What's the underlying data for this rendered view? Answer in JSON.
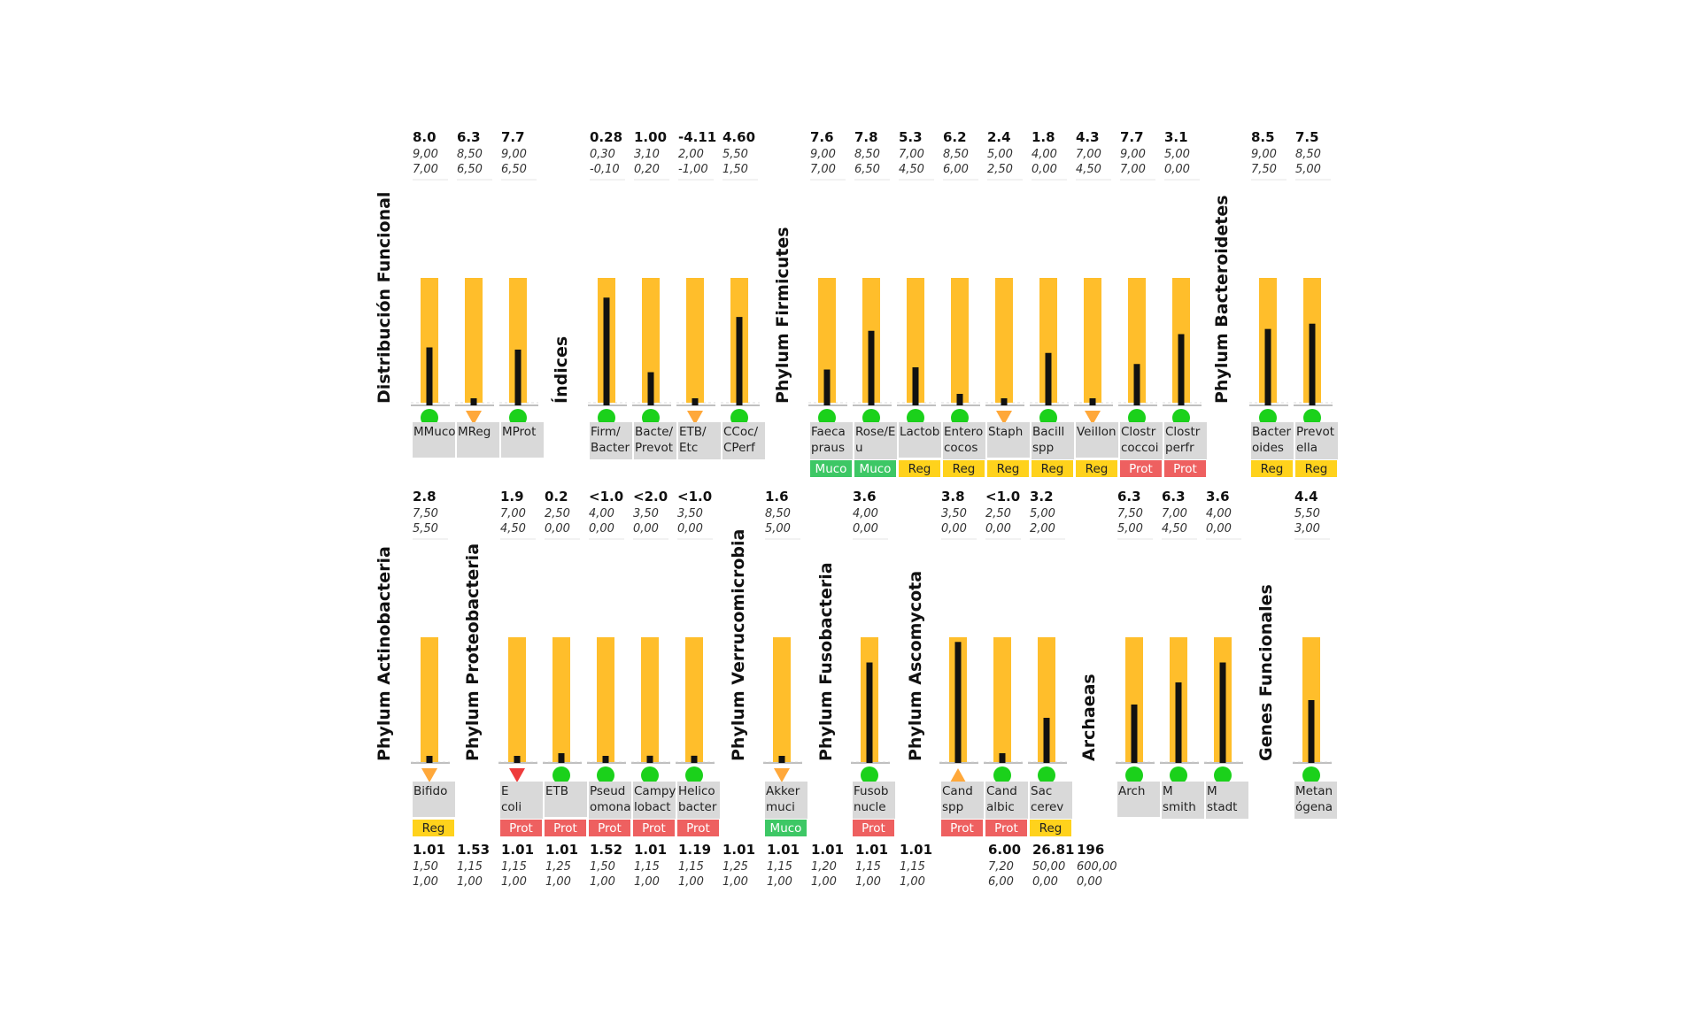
{
  "chart_data": {
    "type": "bar",
    "colors": {
      "range": "#ffbe2b",
      "bar": "#111111",
      "ok": "#1bd11b",
      "warn": "#ffa83a",
      "alert": "#ee3b3b",
      "tag_muco": "#3dc765",
      "tag_reg": "#ffd21c",
      "tag_prot": "#ee6060",
      "label_bg": "#d9d9d9"
    },
    "groups": [
      {
        "title": "Distribución Funcional",
        "row": 0,
        "items": [
          {
            "label": "MMuco",
            "value": "8.0",
            "hi": "9,00",
            "lo": "7,00",
            "v": 8.0,
            "min": 7.0,
            "max": 9.0,
            "status": "ok",
            "icon": "green-dot-icon"
          },
          {
            "label": "MReg",
            "value": "6.3",
            "hi": "8,50",
            "lo": "6,50",
            "v": 6.3,
            "min": 6.5,
            "max": 8.5,
            "status": "warn",
            "icon": "warning-down-icon"
          },
          {
            "label": "MProt",
            "value": "7.7",
            "hi": "9,00",
            "lo": "6,50",
            "v": 7.7,
            "min": 6.5,
            "max": 9.0,
            "status": "ok",
            "icon": "green-dot-icon"
          }
        ]
      },
      {
        "title": "Índices",
        "row": 0,
        "items": [
          {
            "label": "Firm/ Bacter",
            "value": "0.28",
            "hi": "0,30",
            "lo": "-0,10",
            "v": 0.28,
            "min": -0.1,
            "max": 0.3,
            "status": "ok",
            "icon": "green-dot-icon"
          },
          {
            "label": "Bacte/ Prevot",
            "value": "1.00",
            "hi": "3,10",
            "lo": "0,20",
            "v": 1.0,
            "min": 0.2,
            "max": 3.1,
            "status": "ok",
            "icon": "green-dot-icon"
          },
          {
            "label": "ETB/ Etc",
            "value": "-4.11",
            "hi": "2,00",
            "lo": "-1,00",
            "v": -4.11,
            "min": -1.0,
            "max": 2.0,
            "status": "warn",
            "icon": "warning-down-icon"
          },
          {
            "label": "CCoc/ CPerf",
            "value": "4.60",
            "hi": "5,50",
            "lo": "1,50",
            "v": 4.6,
            "min": 1.5,
            "max": 5.5,
            "status": "ok",
            "icon": "green-dot-icon"
          }
        ]
      },
      {
        "title": "Phylum Firmicutes",
        "row": 0,
        "items": [
          {
            "label": "Faeca praus",
            "value": "7.6",
            "hi": "9,00",
            "lo": "7,00",
            "v": 7.6,
            "min": 7.0,
            "max": 9.0,
            "status": "ok",
            "icon": "green-dot-icon",
            "tag": "Muco"
          },
          {
            "label": "Rose/E u",
            "value": "7.8",
            "hi": "8,50",
            "lo": "6,50",
            "v": 7.8,
            "min": 6.5,
            "max": 8.5,
            "status": "ok",
            "icon": "green-dot-icon",
            "tag": "Muco"
          },
          {
            "label": "Lactob",
            "value": "5.3",
            "hi": "7,00",
            "lo": "4,50",
            "v": 5.3,
            "min": 4.5,
            "max": 7.0,
            "status": "ok",
            "icon": "green-dot-icon",
            "tag": "Reg"
          },
          {
            "label": "Entero cocos",
            "value": "6.2",
            "hi": "8,50",
            "lo": "6,00",
            "v": 6.2,
            "min": 6.0,
            "max": 8.5,
            "status": "ok",
            "icon": "green-dot-icon",
            "tag": "Reg"
          },
          {
            "label": "Staph",
            "value": "2.4",
            "hi": "5,00",
            "lo": "2,50",
            "v": 2.4,
            "min": 2.5,
            "max": 5.0,
            "status": "warn",
            "icon": "warning-down-icon",
            "tag": "Reg"
          },
          {
            "label": "Bacill spp",
            "value": "1.8",
            "hi": "4,00",
            "lo": "0,00",
            "v": 1.8,
            "min": 0.0,
            "max": 4.0,
            "status": "ok",
            "icon": "green-dot-icon",
            "tag": "Reg"
          },
          {
            "label": "Veillon",
            "value": "4.3",
            "hi": "7,00",
            "lo": "4,50",
            "v": 4.3,
            "min": 4.5,
            "max": 7.0,
            "status": "warn",
            "icon": "warning-down-icon",
            "tag": "Reg"
          },
          {
            "label": "Clostr coccoi",
            "value": "7.7",
            "hi": "9,00",
            "lo": "7,00",
            "v": 7.7,
            "min": 7.0,
            "max": 9.0,
            "status": "ok",
            "icon": "green-dot-icon",
            "tag": "Prot"
          },
          {
            "label": "Clostr perfr",
            "value": "3.1",
            "hi": "5,00",
            "lo": "0,00",
            "v": 3.1,
            "min": 0.0,
            "max": 5.0,
            "status": "ok",
            "icon": "green-dot-icon",
            "tag": "Prot"
          }
        ]
      },
      {
        "title": "Phylum Bacteroidetes",
        "row": 0,
        "items": [
          {
            "label": "Bacter oides",
            "value": "8.5",
            "hi": "9,00",
            "lo": "7,50",
            "v": 8.5,
            "min": 7.5,
            "max": 9.0,
            "status": "ok",
            "icon": "green-dot-icon",
            "tag": "Reg"
          },
          {
            "label": "Prevot ella",
            "value": "7.5",
            "hi": "8,50",
            "lo": "5,00",
            "v": 7.5,
            "min": 5.0,
            "max": 8.5,
            "status": "ok",
            "icon": "green-dot-icon",
            "tag": "Reg"
          }
        ]
      },
      {
        "title": "Phylum Actinobacteria",
        "row": 1,
        "items": [
          {
            "label": "Bifido",
            "value": "2.8",
            "hi": "7,50",
            "lo": "5,50",
            "v": 2.8,
            "min": 5.5,
            "max": 7.5,
            "status": "warn",
            "icon": "warning-down-icon",
            "tag": "Reg"
          }
        ]
      },
      {
        "title": "Phylum Proteobacteria",
        "row": 1,
        "items": [
          {
            "label": "E coli",
            "value": "1.9",
            "hi": "7,00",
            "lo": "4,50",
            "v": 1.9,
            "min": 4.5,
            "max": 7.0,
            "status": "alert",
            "icon": "alert-down-icon",
            "tag": "Prot"
          },
          {
            "label": "ETB",
            "value": "0.2",
            "hi": "2,50",
            "lo": "0,00",
            "v": 0.2,
            "min": 0.0,
            "max": 2.5,
            "status": "ok",
            "icon": "green-dot-icon",
            "tag": "Prot"
          },
          {
            "label": "Pseud omona",
            "value": "<1.0",
            "hi": "4,00",
            "lo": "0,00",
            "v": 0.2,
            "min": 0.0,
            "max": 4.0,
            "status": "ok",
            "icon": "green-dot-icon",
            "tag": "Prot"
          },
          {
            "label": "Campy lobact",
            "value": "<2.0",
            "hi": "3,50",
            "lo": "0,00",
            "v": 0.2,
            "min": 0.0,
            "max": 3.5,
            "status": "ok",
            "icon": "green-dot-icon",
            "tag": "Prot"
          },
          {
            "label": "Helico bacter",
            "value": "<1.0",
            "hi": "3,50",
            "lo": "0,00",
            "v": 0.2,
            "min": 0.0,
            "max": 3.5,
            "status": "ok",
            "icon": "green-dot-icon",
            "tag": "Prot"
          }
        ]
      },
      {
        "title": "Phylum Verrucomicrobia",
        "row": 1,
        "items": [
          {
            "label": "Akker muci",
            "value": "1.6",
            "hi": "8,50",
            "lo": "5,00",
            "v": 1.6,
            "min": 5.0,
            "max": 8.5,
            "status": "warn",
            "icon": "warning-down-icon",
            "tag": "Muco"
          }
        ]
      },
      {
        "title": "Phylum Fusobacteria",
        "row": 1,
        "items": [
          {
            "label": "Fusob nucle",
            "value": "3.6",
            "hi": "4,00",
            "lo": "0,00",
            "v": 3.6,
            "min": 0.0,
            "max": 4.0,
            "status": "ok",
            "icon": "green-dot-icon",
            "tag": "Prot"
          }
        ]
      },
      {
        "title": "Phylum Ascomycota",
        "row": 1,
        "items": [
          {
            "label": "Cand spp",
            "value": "3.8",
            "hi": "3,50",
            "lo": "0,00",
            "v": 3.8,
            "min": 0.0,
            "max": 3.5,
            "status": "warn",
            "icon": "warning-up-icon",
            "tag": "Prot"
          },
          {
            "label": "Cand albic",
            "value": "<1.0",
            "hi": "2,50",
            "lo": "0,00",
            "v": 0.2,
            "min": 0.0,
            "max": 2.5,
            "status": "ok",
            "icon": "green-dot-icon",
            "tag": "Prot"
          },
          {
            "label": "Sac cerev",
            "value": "3.2",
            "hi": "5,00",
            "lo": "2,00",
            "v": 3.2,
            "min": 2.0,
            "max": 5.0,
            "status": "ok",
            "icon": "green-dot-icon",
            "tag": "Reg"
          }
        ]
      },
      {
        "title": "Archaeas",
        "row": 1,
        "items": [
          {
            "label": "Arch",
            "value": "6.3",
            "hi": "7,50",
            "lo": "5,00",
            "v": 6.3,
            "min": 5.0,
            "max": 7.5,
            "status": "ok",
            "icon": "green-dot-icon"
          },
          {
            "label": "M smith",
            "value": "6.3",
            "hi": "7,00",
            "lo": "4,50",
            "v": 6.3,
            "min": 4.5,
            "max": 7.0,
            "status": "ok",
            "icon": "green-dot-icon"
          },
          {
            "label": "M stadt",
            "value": "3.6",
            "hi": "4,00",
            "lo": "0,00",
            "v": 3.6,
            "min": 0.0,
            "max": 4.0,
            "status": "ok",
            "icon": "green-dot-icon"
          }
        ]
      },
      {
        "title": "Genes Funcionales",
        "row": 1,
        "items": [
          {
            "label": "Metan ógena",
            "value": "4.4",
            "hi": "5,50",
            "lo": "3,00",
            "v": 4.4,
            "min": 3.0,
            "max": 5.5,
            "status": "ok",
            "icon": "green-dot-icon"
          }
        ]
      }
    ],
    "bottom_row": [
      {
        "value": "1.01",
        "hi": "1,50",
        "lo": "1,00"
      },
      {
        "value": "1.53",
        "hi": "1,15",
        "lo": "1,00"
      },
      {
        "value": "1.01",
        "hi": "1,15",
        "lo": "1,00"
      },
      {
        "value": "1.01",
        "hi": "1,25",
        "lo": "1,00"
      },
      {
        "value": "1.52",
        "hi": "1,50",
        "lo": "1,00"
      },
      {
        "value": "1.01",
        "hi": "1,15",
        "lo": "1,00"
      },
      {
        "value": "1.19",
        "hi": "1,15",
        "lo": "1,00"
      },
      {
        "value": "1.01",
        "hi": "1,25",
        "lo": "1,00"
      },
      {
        "value": "1.01",
        "hi": "1,15",
        "lo": "1,00"
      },
      {
        "value": "1.01",
        "hi": "1,20",
        "lo": "1,00"
      },
      {
        "value": "1.01",
        "hi": "1,15",
        "lo": "1,00"
      },
      {
        "value": "1.01",
        "hi": "1,15",
        "lo": "1,00"
      },
      {
        "value": "",
        "hi": "",
        "lo": ""
      },
      {
        "value": "6.00",
        "hi": "7,20",
        "lo": "6,00"
      },
      {
        "value": "26.81",
        "hi": "50,00",
        "lo": "0,00"
      },
      {
        "value": "196",
        "hi": "600,00",
        "lo": "0,00"
      }
    ]
  }
}
